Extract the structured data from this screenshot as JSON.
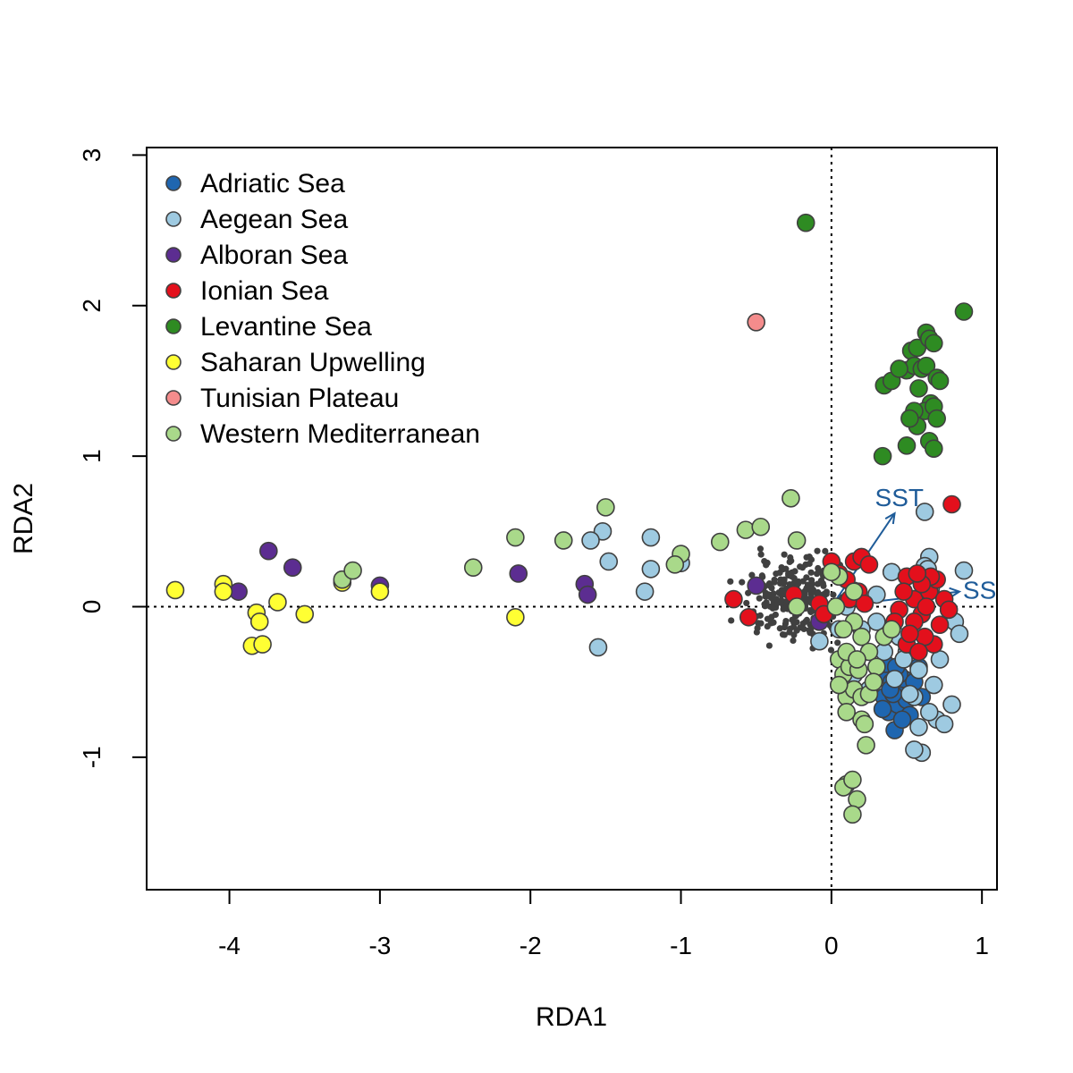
{
  "chart_data": {
    "type": "scatter",
    "title": "",
    "xlabel": "RDA1",
    "ylabel": "RDA2",
    "xlim": [
      -4.55,
      1.1
    ],
    "ylim": [
      -1.88,
      3.05
    ],
    "x_ticks": [
      -4,
      -3,
      -2,
      -1,
      0,
      1
    ],
    "x_tick_labels": [
      "-4",
      "-3",
      "-2",
      "-1",
      "0",
      "1"
    ],
    "y_ticks": [
      -1,
      0,
      1,
      2,
      3
    ],
    "y_tick_labels": [
      "-1",
      "0",
      "1",
      "2",
      "3"
    ],
    "grid": false,
    "reference_lines": [
      {
        "axis": "x",
        "value": 0,
        "style": "dotted"
      },
      {
        "axis": "y",
        "value": 0,
        "style": "dotted"
      }
    ],
    "legend_position": "top-left",
    "point_outline_color": "#404040",
    "background_points": {
      "color": "#404040",
      "description_count": 260,
      "x_range": [
        -0.55,
        0.1
      ],
      "y_range": [
        -0.2,
        0.45
      ]
    },
    "arrows": [
      {
        "label": "SST",
        "x": 0.42,
        "y": 0.62,
        "color": "#1f5c99"
      },
      {
        "label": "SS",
        "x": 0.85,
        "y": 0.1,
        "color": "#1f5c99"
      }
    ],
    "series": [
      {
        "name": "Adriatic Sea",
        "color": "#1f66b0",
        "points": [
          [
            0.33,
            -0.45
          ],
          [
            0.35,
            -0.6
          ],
          [
            0.38,
            -0.7
          ],
          [
            0.4,
            -0.5
          ],
          [
            0.42,
            -0.82
          ],
          [
            0.44,
            -0.65
          ],
          [
            0.46,
            -0.55
          ],
          [
            0.48,
            -0.48
          ],
          [
            0.5,
            -0.62
          ],
          [
            0.52,
            -0.72
          ],
          [
            0.36,
            -0.38
          ],
          [
            0.41,
            -0.58
          ],
          [
            0.45,
            -0.45
          ],
          [
            0.55,
            -0.5
          ],
          [
            0.58,
            -0.4
          ],
          [
            0.34,
            -0.68
          ],
          [
            0.47,
            -0.75
          ],
          [
            0.39,
            -0.55
          ],
          [
            0.6,
            -0.6
          ],
          [
            0.43,
            -0.4
          ]
        ]
      },
      {
        "name": "Aegean Sea",
        "color": "#9ecae1",
        "points": [
          [
            -1.52,
            0.5
          ],
          [
            -1.48,
            0.3
          ],
          [
            -1.6,
            0.44
          ],
          [
            -1.2,
            0.46
          ],
          [
            -1.2,
            0.25
          ],
          [
            -1.0,
            0.29
          ],
          [
            -1.24,
            0.1
          ],
          [
            -1.55,
            -0.27
          ],
          [
            0.62,
            0.63
          ],
          [
            0.4,
            0.23
          ],
          [
            0.65,
            0.33
          ],
          [
            0.88,
            0.24
          ],
          [
            0.82,
            -0.1
          ],
          [
            0.8,
            -0.65
          ],
          [
            0.6,
            -0.97
          ],
          [
            0.55,
            -0.95
          ],
          [
            0.7,
            -0.75
          ],
          [
            0.75,
            -0.78
          ],
          [
            0.68,
            -0.52
          ],
          [
            0.72,
            -0.35
          ],
          [
            0.62,
            0.27
          ],
          [
            0.64,
            0.25
          ],
          [
            0.5,
            -0.3
          ],
          [
            0.55,
            -0.6
          ],
          [
            0.58,
            -0.8
          ],
          [
            0.45,
            -0.2
          ],
          [
            0.3,
            -0.1
          ],
          [
            0.3,
            0.08
          ],
          [
            0.85,
            -0.18
          ],
          [
            0.65,
            -0.7
          ],
          [
            -0.08,
            -0.23
          ],
          [
            0.05,
            -0.15
          ],
          [
            0.2,
            -0.15
          ],
          [
            0.35,
            -0.3
          ],
          [
            0.42,
            -0.48
          ],
          [
            0.48,
            -0.35
          ],
          [
            0.52,
            -0.58
          ],
          [
            0.15,
            -0.45
          ],
          [
            0.25,
            -0.55
          ],
          [
            0.1,
            0.0
          ],
          [
            0.58,
            -0.42
          ],
          [
            0.66,
            0.12
          ]
        ]
      },
      {
        "name": "Alboran Sea",
        "color": "#5c2d91",
        "points": [
          [
            -3.74,
            0.37
          ],
          [
            -3.58,
            0.26
          ],
          [
            -3.94,
            0.1
          ],
          [
            -3.0,
            0.14
          ],
          [
            -2.08,
            0.22
          ],
          [
            -1.64,
            0.15
          ],
          [
            -1.62,
            0.08
          ],
          [
            -0.5,
            0.14
          ],
          [
            -0.08,
            -0.1
          ],
          [
            -0.05,
            -0.05
          ]
        ]
      },
      {
        "name": "Ionian Sea",
        "color": "#e3101c",
        "points": [
          [
            0.8,
            0.68
          ],
          [
            -0.65,
            0.05
          ],
          [
            -0.55,
            -0.07
          ],
          [
            -0.25,
            0.08
          ],
          [
            -0.08,
            0.02
          ],
          [
            -0.05,
            -0.05
          ],
          [
            0.0,
            0.3
          ],
          [
            0.05,
            0.22
          ],
          [
            0.1,
            0.18
          ],
          [
            0.15,
            0.3
          ],
          [
            0.2,
            0.33
          ],
          [
            0.25,
            0.28
          ],
          [
            0.12,
            0.05
          ],
          [
            0.18,
            0.1
          ],
          [
            0.22,
            0.02
          ],
          [
            0.5,
            0.2
          ],
          [
            0.55,
            0.05
          ],
          [
            0.6,
            -0.05
          ],
          [
            0.65,
            0.1
          ],
          [
            0.7,
            0.18
          ],
          [
            0.72,
            -0.12
          ],
          [
            0.68,
            -0.25
          ],
          [
            0.62,
            -0.2
          ],
          [
            0.55,
            -0.1
          ],
          [
            0.48,
            0.1
          ],
          [
            0.45,
            -0.02
          ],
          [
            0.42,
            -0.1
          ],
          [
            0.5,
            -0.25
          ],
          [
            0.58,
            -0.3
          ],
          [
            0.63,
            0.0
          ],
          [
            0.75,
            0.05
          ],
          [
            0.78,
            -0.02
          ],
          [
            0.66,
            0.2
          ],
          [
            0.6,
            0.15
          ],
          [
            0.52,
            -0.18
          ],
          [
            0.57,
            0.22
          ]
        ]
      },
      {
        "name": "Levantine Sea",
        "color": "#2e8b22",
        "points": [
          [
            -0.17,
            2.55
          ],
          [
            0.88,
            1.96
          ],
          [
            0.53,
            1.7
          ],
          [
            0.57,
            1.72
          ],
          [
            0.63,
            1.82
          ],
          [
            0.65,
            1.78
          ],
          [
            0.68,
            1.75
          ],
          [
            0.5,
            1.57
          ],
          [
            0.55,
            1.6
          ],
          [
            0.6,
            1.58
          ],
          [
            0.63,
            1.6
          ],
          [
            0.7,
            1.52
          ],
          [
            0.72,
            1.5
          ],
          [
            0.35,
            1.47
          ],
          [
            0.4,
            1.5
          ],
          [
            0.58,
            1.45
          ],
          [
            0.66,
            1.35
          ],
          [
            0.62,
            1.3
          ],
          [
            0.68,
            1.33
          ],
          [
            0.55,
            1.3
          ],
          [
            0.57,
            1.2
          ],
          [
            0.52,
            1.25
          ],
          [
            0.7,
            1.25
          ],
          [
            0.65,
            1.1
          ],
          [
            0.68,
            1.05
          ],
          [
            0.5,
            1.07
          ],
          [
            0.34,
            1.0
          ],
          [
            0.45,
            1.58
          ]
        ]
      },
      {
        "name": "Saharan Upwelling",
        "color": "#ffff33",
        "points": [
          [
            -4.36,
            0.11
          ],
          [
            -4.04,
            0.15
          ],
          [
            -4.04,
            0.1
          ],
          [
            -3.82,
            -0.04
          ],
          [
            -3.8,
            -0.1
          ],
          [
            -3.85,
            -0.26
          ],
          [
            -3.78,
            -0.25
          ],
          [
            -3.68,
            0.03
          ],
          [
            -3.5,
            -0.05
          ],
          [
            -3.25,
            0.16
          ],
          [
            -3.0,
            0.1
          ],
          [
            -2.1,
            -0.07
          ]
        ]
      },
      {
        "name": "Tunisian Plateau",
        "color": "#f48c8c",
        "points": [
          [
            -0.5,
            1.89
          ]
        ]
      },
      {
        "name": "Western Mediterranean",
        "color": "#a9d98a",
        "points": [
          [
            -3.25,
            0.18
          ],
          [
            -3.18,
            0.24
          ],
          [
            -2.38,
            0.26
          ],
          [
            -2.1,
            0.46
          ],
          [
            -1.78,
            0.44
          ],
          [
            -1.5,
            0.66
          ],
          [
            -1.0,
            0.35
          ],
          [
            -1.04,
            0.28
          ],
          [
            -0.74,
            0.43
          ],
          [
            -0.57,
            0.51
          ],
          [
            -0.47,
            0.53
          ],
          [
            -0.27,
            0.72
          ],
          [
            -0.23,
            0.44
          ],
          [
            -0.23,
            0.0
          ],
          [
            0.05,
            0.2
          ],
          [
            0.15,
            0.1
          ],
          [
            0.15,
            -0.1
          ],
          [
            0.2,
            -0.2
          ],
          [
            0.25,
            -0.3
          ],
          [
            0.05,
            -0.35
          ],
          [
            0.08,
            -0.45
          ],
          [
            0.1,
            -0.6
          ],
          [
            0.15,
            -0.55
          ],
          [
            0.2,
            -0.6
          ],
          [
            0.25,
            -0.58
          ],
          [
            0.2,
            -0.75
          ],
          [
            0.22,
            -0.78
          ],
          [
            0.1,
            -0.7
          ],
          [
            0.12,
            -0.4
          ],
          [
            0.3,
            -0.4
          ],
          [
            0.35,
            -0.2
          ],
          [
            0.4,
            -0.15
          ],
          [
            0.05,
            -0.52
          ],
          [
            0.18,
            -0.42
          ],
          [
            0.23,
            -0.92
          ],
          [
            0.1,
            -1.18
          ],
          [
            0.08,
            -1.2
          ],
          [
            0.14,
            -1.15
          ],
          [
            0.17,
            -1.28
          ],
          [
            0.14,
            -1.38
          ],
          [
            0.0,
            0.23
          ],
          [
            0.03,
            0.0
          ],
          [
            0.1,
            -0.3
          ],
          [
            0.08,
            -0.15
          ],
          [
            0.17,
            -0.35
          ],
          [
            0.28,
            -0.5
          ]
        ]
      }
    ]
  }
}
